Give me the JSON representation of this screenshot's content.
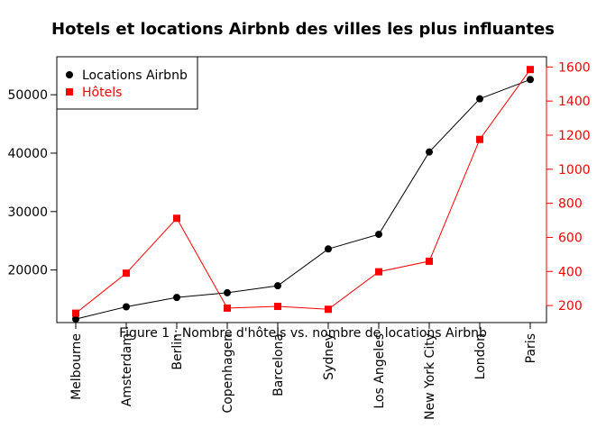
{
  "chart_data": {
    "type": "line",
    "title": "Hotels et locations Airbnb des villes les plus influantes",
    "caption": "Figure 1 : Nombre d'hôtels vs. nombre de locations Airbnb",
    "categories": [
      "Melbourne",
      "Amsterdam",
      "Berlin",
      "Copenhagen",
      "Barcelona",
      "Sydney",
      "Los Angeles",
      "New York City",
      "London",
      "Paris"
    ],
    "left_axis": {
      "range": [
        11000,
        56500
      ],
      "ticks": [
        20000,
        30000,
        40000,
        50000
      ],
      "tick_labels": [
        "20000",
        "30000",
        "40000",
        "50000"
      ]
    },
    "right_axis": {
      "range": [
        100,
        1660
      ],
      "ticks": [
        200,
        400,
        600,
        800,
        1000,
        1200,
        1400,
        1600
      ],
      "tick_labels": [
        "200",
        "400",
        "600",
        "800",
        "1000",
        "1200",
        "1400",
        "1600"
      ]
    },
    "series": [
      {
        "name": "Locations Airbnb",
        "axis": "left",
        "color": "#000000",
        "marker": "circle",
        "values": [
          11600,
          13700,
          15300,
          16100,
          17300,
          23600,
          26100,
          40200,
          49300,
          52600
        ]
      },
      {
        "name": "Hôtels",
        "axis": "right",
        "color": "#ff0000",
        "marker": "square",
        "values": [
          155,
          390,
          712,
          185,
          195,
          178,
          398,
          460,
          1175,
          1585
        ]
      }
    ],
    "legend_position": "top-left",
    "grid": false
  },
  "colors": {
    "primary": "#000000",
    "secondary": "#ff0000",
    "background": "#ffffff"
  }
}
